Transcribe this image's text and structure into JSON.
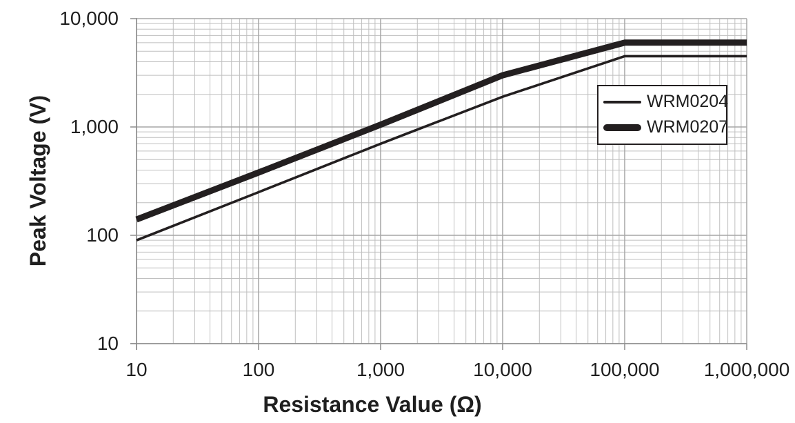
{
  "chart_data": {
    "type": "line",
    "title": "",
    "xlabel": "Resistance Value (Ω)",
    "ylabel": "Peak Voltage (V)",
    "x_scale": "log",
    "y_scale": "log",
    "xlim": [
      10,
      1000000
    ],
    "ylim": [
      10,
      10000
    ],
    "x_tick_values": [
      10,
      100,
      1000,
      10000,
      100000,
      1000000
    ],
    "x_tick_labels": [
      "10",
      "100",
      "1,000",
      "10,000",
      "100,000",
      "1,000,000"
    ],
    "y_tick_values": [
      10,
      100,
      1000,
      10000
    ],
    "y_tick_labels": [
      "10",
      "100",
      "1,000",
      "10,000"
    ],
    "grid": {
      "major": true,
      "minor": true,
      "minor_log_subdivisions": [
        2,
        3,
        4,
        5,
        6,
        7,
        8,
        9
      ]
    },
    "legend": {
      "position": "upper-right-inside",
      "entries": [
        "WRM0204",
        "WRM0207"
      ]
    },
    "series": [
      {
        "name": "WRM0204",
        "style": "thin",
        "points": [
          [
            10,
            90
          ],
          [
            100,
            250
          ],
          [
            1000,
            700
          ],
          [
            10000,
            1900
          ],
          [
            100000,
            4500
          ],
          [
            1000000,
            4500
          ]
        ]
      },
      {
        "name": "WRM0207",
        "style": "thick",
        "points": [
          [
            10,
            140
          ],
          [
            100,
            380
          ],
          [
            1000,
            1050
          ],
          [
            10000,
            3000
          ],
          [
            100000,
            6000
          ],
          [
            1000000,
            6000
          ]
        ]
      }
    ],
    "colors": {
      "series_line": "#231f20",
      "grid_minor": "#bfbfbf",
      "grid_major": "#a6a6a6",
      "axis": "#8c8c8c",
      "text": "#1f1f1f",
      "background": "#ffffff",
      "legend_border": "#231f20"
    }
  }
}
